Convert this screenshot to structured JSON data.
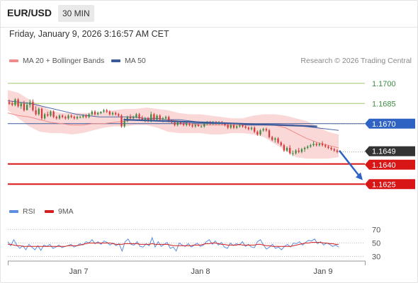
{
  "header": {
    "symbol": "EUR/USD",
    "timeframe": "30 MIN",
    "timestamp": "Friday, January 9, 2026 3:16:57 AM CET"
  },
  "legend": {
    "bollinger": "MA 20 + Bollinger Bands",
    "ma50": "MA 50",
    "credit": "Research © 2026 Trading Central",
    "rsi": "RSI",
    "rsi_ma": "9MA"
  },
  "colors": {
    "up_candle": "#3e8c42",
    "down_candle": "#d23b3b",
    "bollinger_fill": "#fbd8d8",
    "ma20": "#f08b8b",
    "ma50": "#4c6aa8",
    "trendline": "#3a5a9a",
    "resistance": "#9fc86e",
    "support": "#d91616",
    "current_price_bg": "#333333",
    "pivot_bg": "#2e63c4",
    "rsi_line": "#5b8de0",
    "rsi_ma_line": "#d41f1f"
  },
  "chart_data": {
    "type": "candlestick",
    "title": "",
    "x_tick_labels": [
      "Jan 7",
      "Jan 8",
      "Jan 9"
    ],
    "ylim": [
      1.1612,
      1.1712
    ],
    "levels": {
      "resistance": [
        1.17,
        1.1685
      ],
      "pivot": 1.167,
      "current": 1.1649,
      "support": [
        1.164,
        1.1625
      ]
    },
    "level_labels": [
      "1.1700",
      "1.1685",
      "1.1670",
      "1.1649",
      "1.1640",
      "1.1625"
    ],
    "trendline": [
      [
        0.35,
        1.1673
      ],
      [
        0.935,
        1.1668
      ]
    ],
    "projection_arrow": [
      [
        0.93,
        1.165
      ],
      [
        1.0,
        1.1628
      ]
    ],
    "ma20": [
      1.1678,
      1.1676,
      1.1675,
      1.1673,
      1.1671,
      1.167,
      1.1669,
      1.1669,
      1.167,
      1.167,
      1.1671,
      1.1672,
      1.1673,
      1.1673,
      1.1674,
      1.1673,
      1.1672,
      1.167,
      1.1669,
      1.1669,
      1.1669,
      1.1669,
      1.1669,
      1.1669,
      1.1669,
      1.1669,
      1.1667,
      1.1663,
      1.1659,
      1.1656,
      1.1654,
      1.1652
    ],
    "bollinger": {
      "upper": [
        1.1695,
        1.1693,
        1.1688,
        1.1684,
        1.168,
        1.1678,
        1.1678,
        1.1678,
        1.1678,
        1.1679,
        1.168,
        1.1681,
        1.1681,
        1.1682,
        1.1681,
        1.168,
        1.1678,
        1.1677,
        1.1677,
        1.1676,
        1.1675,
        1.1674,
        1.1674,
        1.1676,
        1.1677,
        1.1677,
        1.1676,
        1.1674,
        1.1672,
        1.1668,
        1.1664,
        1.1662
      ],
      "lower": [
        1.168,
        1.1674,
        1.1668,
        1.1664,
        1.1663,
        1.1663,
        1.1662,
        1.1663,
        1.1665,
        1.1667,
        1.1668,
        1.1668,
        1.1669,
        1.1669,
        1.1667,
        1.1664,
        1.1663,
        1.1663,
        1.1663,
        1.1662,
        1.1662,
        1.1663,
        1.1663,
        1.1662,
        1.166,
        1.1655,
        1.165,
        1.1645,
        1.1644,
        1.1644,
        1.1644,
        1.1645
      ]
    },
    "ma50": [
      1.1687,
      1.1686,
      1.1685,
      1.1683,
      1.1681,
      1.1679,
      1.1677,
      1.1676,
      1.1675,
      1.1675,
      1.1675,
      1.1675,
      1.1674,
      1.1674,
      1.1673,
      1.1673,
      1.1672,
      1.1671,
      1.1671,
      1.167,
      1.167,
      1.1669,
      1.1669,
      1.1669,
      1.1669,
      1.1669,
      1.1668,
      1.1667,
      1.1666,
      1.1665
    ],
    "candles": [
      [
        1.1686,
        1.1688,
        1.1684,
        1.1685
      ],
      [
        1.1685,
        1.1687,
        1.1683,
        1.1684
      ],
      [
        1.1684,
        1.1689,
        1.1683,
        1.1688
      ],
      [
        1.1688,
        1.1689,
        1.1682,
        1.1683
      ],
      [
        1.1683,
        1.1686,
        1.1681,
        1.1685
      ],
      [
        1.1685,
        1.1687,
        1.1679,
        1.168
      ],
      [
        1.168,
        1.1686,
        1.168,
        1.1684
      ],
      [
        1.1684,
        1.1688,
        1.1682,
        1.1686
      ],
      [
        1.1686,
        1.1688,
        1.1679,
        1.168
      ],
      [
        1.168,
        1.1683,
        1.1676,
        1.1677
      ],
      [
        1.1677,
        1.1682,
        1.1676,
        1.1681
      ],
      [
        1.1681,
        1.1682,
        1.1673,
        1.1674
      ],
      [
        1.1674,
        1.1678,
        1.1673,
        1.1677
      ],
      [
        1.1677,
        1.1679,
        1.1675,
        1.1676
      ],
      [
        1.1676,
        1.168,
        1.1675,
        1.1679
      ],
      [
        1.1679,
        1.168,
        1.1674,
        1.1675
      ],
      [
        1.1675,
        1.1676,
        1.1673,
        1.1674
      ],
      [
        1.1674,
        1.1677,
        1.1673,
        1.1676
      ],
      [
        1.1676,
        1.1677,
        1.1674,
        1.1675
      ],
      [
        1.1675,
        1.1676,
        1.1673,
        1.1674
      ],
      [
        1.1674,
        1.1677,
        1.1673,
        1.1676
      ],
      [
        1.1676,
        1.1677,
        1.1674,
        1.1675
      ],
      [
        1.1675,
        1.1676,
        1.1673,
        1.1674
      ],
      [
        1.1674,
        1.1676,
        1.1673,
        1.1675
      ],
      [
        1.1675,
        1.1676,
        1.1674,
        1.1675
      ],
      [
        1.1675,
        1.1677,
        1.1674,
        1.1676
      ],
      [
        1.1676,
        1.1677,
        1.1674,
        1.1675
      ],
      [
        1.1675,
        1.1678,
        1.1674,
        1.1677
      ],
      [
        1.1677,
        1.168,
        1.1676,
        1.1679
      ],
      [
        1.1679,
        1.168,
        1.1676,
        1.1677
      ],
      [
        1.1677,
        1.1679,
        1.1676,
        1.1678
      ],
      [
        1.1678,
        1.1679,
        1.1677,
        1.1679
      ],
      [
        1.1679,
        1.1681,
        1.1678,
        1.168
      ],
      [
        1.168,
        1.1681,
        1.1678,
        1.1679
      ],
      [
        1.1679,
        1.168,
        1.1676,
        1.1677
      ],
      [
        1.1677,
        1.1679,
        1.1676,
        1.1678
      ],
      [
        1.1678,
        1.1679,
        1.1676,
        1.1677
      ],
      [
        1.1677,
        1.1678,
        1.1675,
        1.1676
      ],
      [
        1.1676,
        1.1677,
        1.1667,
        1.1668
      ],
      [
        1.1668,
        1.1674,
        1.1667,
        1.1672
      ],
      [
        1.1672,
        1.1676,
        1.1671,
        1.1675
      ],
      [
        1.1675,
        1.1677,
        1.1673,
        1.1674
      ],
      [
        1.1674,
        1.1676,
        1.1673,
        1.1675
      ],
      [
        1.1675,
        1.1678,
        1.1674,
        1.1677
      ],
      [
        1.1677,
        1.1678,
        1.1673,
        1.1674
      ],
      [
        1.1674,
        1.1676,
        1.1672,
        1.1673
      ],
      [
        1.1673,
        1.1675,
        1.1671,
        1.1674
      ],
      [
        1.1674,
        1.1675,
        1.1671,
        1.1672
      ],
      [
        1.1672,
        1.1679,
        1.1671,
        1.1677
      ],
      [
        1.1677,
        1.1678,
        1.1672,
        1.1673
      ],
      [
        1.1673,
        1.1677,
        1.1672,
        1.1676
      ],
      [
        1.1676,
        1.1677,
        1.1672,
        1.1673
      ],
      [
        1.1673,
        1.1675,
        1.1671,
        1.1674
      ],
      [
        1.1674,
        1.1676,
        1.1673,
        1.1675
      ],
      [
        1.1675,
        1.1676,
        1.1671,
        1.1672
      ],
      [
        1.1672,
        1.1673,
        1.167,
        1.1671
      ],
      [
        1.1671,
        1.1672,
        1.1668,
        1.1669
      ],
      [
        1.1669,
        1.1672,
        1.1668,
        1.1671
      ],
      [
        1.1671,
        1.1672,
        1.1669,
        1.167
      ],
      [
        1.167,
        1.1671,
        1.1668,
        1.1669
      ],
      [
        1.1669,
        1.1671,
        1.1668,
        1.167
      ],
      [
        1.167,
        1.1671,
        1.1668,
        1.1669
      ],
      [
        1.1669,
        1.167,
        1.1667,
        1.1668
      ],
      [
        1.1668,
        1.167,
        1.1667,
        1.1669
      ],
      [
        1.1669,
        1.167,
        1.1668,
        1.1668
      ],
      [
        1.1668,
        1.1669,
        1.1667,
        1.1668
      ],
      [
        1.1668,
        1.1671,
        1.1667,
        1.167
      ],
      [
        1.167,
        1.1672,
        1.1669,
        1.1671
      ],
      [
        1.1671,
        1.1672,
        1.1669,
        1.167
      ],
      [
        1.167,
        1.1672,
        1.1669,
        1.1671
      ],
      [
        1.1671,
        1.1672,
        1.1669,
        1.167
      ],
      [
        1.167,
        1.1672,
        1.1669,
        1.1671
      ],
      [
        1.1671,
        1.1672,
        1.1669,
        1.167
      ],
      [
        1.167,
        1.1671,
        1.1668,
        1.1669
      ],
      [
        1.1669,
        1.167,
        1.1666,
        1.1667
      ],
      [
        1.1667,
        1.167,
        1.1666,
        1.1669
      ],
      [
        1.1669,
        1.167,
        1.1666,
        1.1667
      ],
      [
        1.1667,
        1.1669,
        1.1666,
        1.1668
      ],
      [
        1.1668,
        1.167,
        1.1667,
        1.1669
      ],
      [
        1.1669,
        1.167,
        1.1667,
        1.1668
      ],
      [
        1.1668,
        1.1669,
        1.1666,
        1.1667
      ],
      [
        1.1667,
        1.1668,
        1.1665,
        1.1666
      ],
      [
        1.1666,
        1.1668,
        1.1665,
        1.1667
      ],
      [
        1.1667,
        1.1668,
        1.1663,
        1.1664
      ],
      [
        1.1664,
        1.1665,
        1.1661,
        1.1662
      ],
      [
        1.1662,
        1.1666,
        1.1661,
        1.1665
      ],
      [
        1.1665,
        1.1667,
        1.1664,
        1.1666
      ],
      [
        1.1666,
        1.1667,
        1.1664,
        1.1665
      ],
      [
        1.1665,
        1.1666,
        1.1659,
        1.166
      ],
      [
        1.166,
        1.1661,
        1.1657,
        1.1658
      ],
      [
        1.1658,
        1.166,
        1.1656,
        1.1659
      ],
      [
        1.1659,
        1.166,
        1.1655,
        1.1656
      ],
      [
        1.1656,
        1.1657,
        1.1653,
        1.1654
      ],
      [
        1.1654,
        1.1655,
        1.1649,
        1.165
      ],
      [
        1.165,
        1.1653,
        1.1649,
        1.1652
      ],
      [
        1.1652,
        1.1654,
        1.1647,
        1.1648
      ],
      [
        1.1648,
        1.165,
        1.1646,
        1.1648
      ],
      [
        1.1648,
        1.1651,
        1.1647,
        1.165
      ],
      [
        1.165,
        1.1652,
        1.1648,
        1.1649
      ],
      [
        1.1649,
        1.1652,
        1.1648,
        1.1651
      ],
      [
        1.1651,
        1.1653,
        1.1649,
        1.1652
      ],
      [
        1.1652,
        1.1654,
        1.1651,
        1.1653
      ],
      [
        1.1653,
        1.1655,
        1.1652,
        1.1654
      ],
      [
        1.1654,
        1.1657,
        1.1653,
        1.1655
      ],
      [
        1.1655,
        1.1656,
        1.1653,
        1.1654
      ],
      [
        1.1654,
        1.1656,
        1.1653,
        1.1655
      ],
      [
        1.1655,
        1.1657,
        1.1653,
        1.1654
      ],
      [
        1.1654,
        1.1655,
        1.1652,
        1.1653
      ],
      [
        1.1653,
        1.1654,
        1.1651,
        1.1652
      ],
      [
        1.1652,
        1.1653,
        1.165,
        1.1651
      ],
      [
        1.1651,
        1.1652,
        1.1649,
        1.165
      ],
      [
        1.165,
        1.1651,
        1.1648,
        1.1649
      ]
    ],
    "rsi": {
      "ylim": [
        20,
        80
      ],
      "levels": [
        70,
        50,
        30
      ],
      "tick_labels": [
        "70",
        "50",
        "30"
      ],
      "values": [
        52,
        46,
        55,
        47,
        42,
        46,
        40,
        48,
        44,
        40,
        46,
        39,
        47,
        45,
        48,
        42,
        44,
        47,
        43,
        45,
        46,
        48,
        44,
        46,
        49,
        47,
        52,
        50,
        55,
        49,
        52,
        48,
        53,
        51,
        47,
        50,
        46,
        49,
        38,
        52,
        56,
        48,
        47,
        52,
        45,
        44,
        49,
        46,
        58,
        44,
        52,
        45,
        48,
        51,
        42,
        44,
        38,
        50,
        47,
        45,
        49,
        44,
        47,
        50,
        45,
        47,
        52,
        55,
        48,
        53,
        47,
        51,
        44,
        42,
        50,
        46,
        49,
        47,
        52,
        45,
        48,
        44,
        43,
        52,
        55,
        47,
        41,
        44,
        48,
        42,
        44,
        40,
        45,
        48,
        44,
        50,
        49,
        52,
        47,
        51,
        54,
        53,
        56,
        49,
        52,
        47,
        50,
        48,
        45,
        47,
        44
      ],
      "ma9": [
        48,
        48,
        47,
        46,
        46,
        45,
        45,
        45,
        45,
        45,
        45,
        45,
        45,
        45,
        45,
        45,
        45,
        45,
        45,
        45,
        46,
        46,
        46,
        46,
        47,
        48,
        49,
        50,
        50,
        50,
        50,
        50,
        50,
        50,
        50,
        49,
        48,
        48,
        48,
        49,
        49,
        49,
        49,
        49,
        48,
        48,
        48,
        48,
        49,
        48,
        48,
        48,
        48,
        48,
        47,
        46,
        46,
        46,
        46,
        46,
        46,
        46,
        47,
        47,
        47,
        48,
        49,
        49,
        50,
        50,
        49,
        48,
        48,
        47,
        47,
        47,
        47,
        48,
        47,
        47,
        47,
        47,
        47,
        48,
        48,
        47,
        46,
        46,
        45,
        45,
        45,
        45,
        45,
        45,
        45,
        46,
        47,
        48,
        49,
        50,
        50,
        51,
        51,
        51,
        51,
        50,
        50,
        49,
        49,
        48,
        48
      ]
    }
  }
}
